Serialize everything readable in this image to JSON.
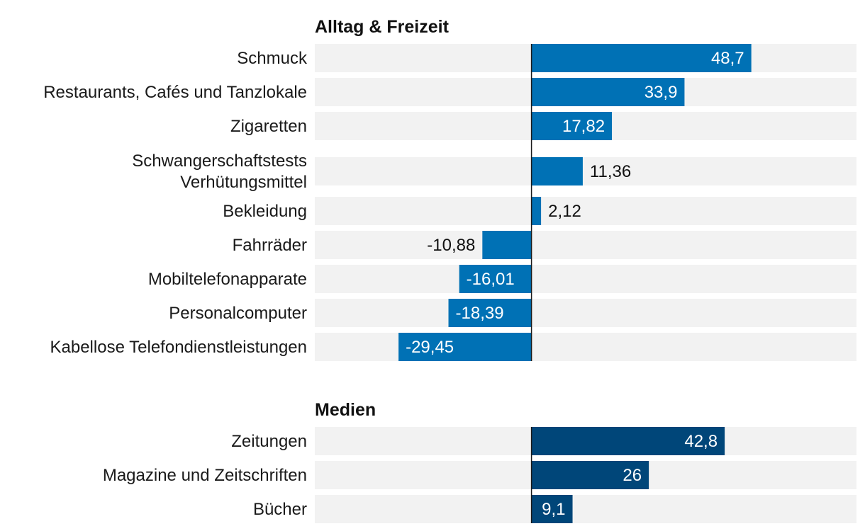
{
  "chart_data": {
    "type": "bar",
    "orientation": "horizontal",
    "grid": false,
    "xlim": [
      -48,
      72
    ],
    "sections": [
      {
        "title": "Alltag & Freizeit",
        "color": "#0071b5",
        "rows": [
          {
            "label": [
              "Schmuck"
            ],
            "value": 48.7,
            "display": "48,7"
          },
          {
            "label": [
              "Restaurants, Cafés und Tanzlokale"
            ],
            "value": 33.9,
            "display": "33,9"
          },
          {
            "label": [
              "Zigaretten"
            ],
            "value": 17.82,
            "display": "17,82"
          },
          {
            "label": [
              "Schwangerschaftstests",
              "Verhütungsmittel"
            ],
            "value": 11.36,
            "display": "11,36"
          },
          {
            "label": [
              "Bekleidung"
            ],
            "value": 2.12,
            "display": "2,12"
          },
          {
            "label": [
              "Fahrräder"
            ],
            "value": -10.88,
            "display": "-10,88"
          },
          {
            "label": [
              "Mobiltelefonapparate"
            ],
            "value": -16.01,
            "display": "-16,01"
          },
          {
            "label": [
              "Personalcomputer"
            ],
            "value": -18.39,
            "display": "-18,39"
          },
          {
            "label": [
              "Kabellose Telefondienstleistungen"
            ],
            "value": -29.45,
            "display": "-29,45"
          }
        ]
      },
      {
        "title": "Medien",
        "color": "#004679",
        "rows": [
          {
            "label": [
              "Zeitungen"
            ],
            "value": 42.8,
            "display": "42,8"
          },
          {
            "label": [
              "Magazine und Zeitschriften"
            ],
            "value": 26,
            "display": "26"
          },
          {
            "label": [
              "Bücher"
            ],
            "value": 9.1,
            "display": "9,1"
          }
        ]
      }
    ]
  }
}
